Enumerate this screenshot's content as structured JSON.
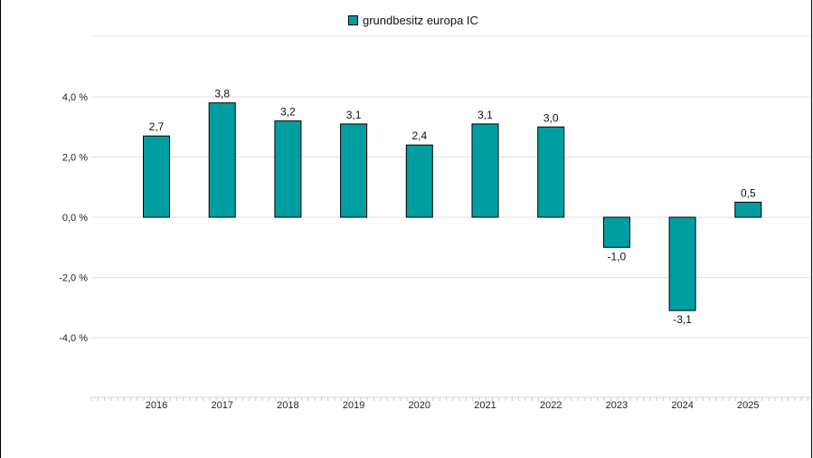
{
  "chart_data": {
    "type": "bar",
    "legend": "grundbesitz europa IC",
    "legend_position": "top-center",
    "categories": [
      "2016",
      "2017",
      "2018",
      "2019",
      "2020",
      "2021",
      "2022",
      "2023",
      "2024",
      "2025"
    ],
    "series": [
      {
        "name": "grundbesitz europa IC",
        "values": [
          2.7,
          3.8,
          3.2,
          3.1,
          2.4,
          3.1,
          3.0,
          -1.0,
          -3.1,
          0.5
        ]
      }
    ],
    "data_labels": [
      "2,7",
      "3,8",
      "3,2",
      "3,1",
      "2,4",
      "3,1",
      "3,0",
      "-1,0",
      "-3,1",
      "0,5"
    ],
    "y_ticks": [
      4.0,
      2.0,
      0.0,
      -2.0,
      -4.0
    ],
    "y_tick_labels": [
      "4,0 %",
      "2,0 %",
      "0,0 %",
      "-2,0 %",
      "-4,0 %"
    ],
    "ylim": [
      -6.0,
      6.0
    ],
    "grid": true,
    "bar_color": "#009ea0",
    "title": "",
    "xlabel": "",
    "ylabel": ""
  }
}
